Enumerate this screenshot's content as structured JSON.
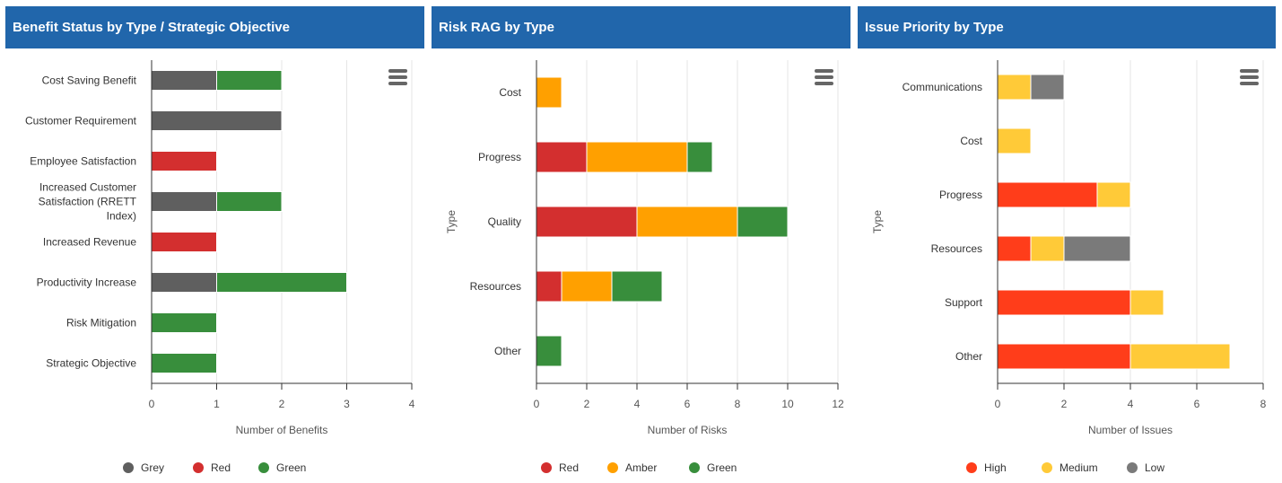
{
  "panels": [
    {
      "title": "Benefit Status by Type / Strategic Objective"
    },
    {
      "title": "Risk RAG by Type"
    },
    {
      "title": "Issue Priority by Type"
    }
  ],
  "colors": {
    "grey": "#5f5f5f",
    "red": "#d32f2f",
    "amber": "#ffa000",
    "green": "#388e3c",
    "high": "#ff3d1a",
    "medium": "#ffca38",
    "low": "#7a7a7a",
    "header_bg": "#2166ab",
    "menu_icon": "#666666"
  },
  "icons": {
    "menu": "hamburger-menu-icon",
    "legend_marker": "circle"
  },
  "chart_data": [
    {
      "type": "bar",
      "orientation": "horizontal",
      "stacked": true,
      "title": "Benefit Status by Type / Strategic Objective",
      "xlabel": "Number of Benefits",
      "ylabel": "",
      "xlim": [
        0,
        4
      ],
      "xticks": [
        "0",
        "1",
        "2",
        "3",
        "4"
      ],
      "grid": true,
      "legend_position": "bottom",
      "categories": [
        "Cost Saving Benefit",
        "Customer Requirement",
        "Employee Satisfaction",
        "Increased Customer Satisfaction (RRETT Index)",
        "Increased Revenue",
        "Productivity Increase",
        "Risk Mitigation",
        "Strategic Objective"
      ],
      "series": [
        {
          "name": "Grey",
          "color": "#5f5f5f",
          "values": [
            1,
            2,
            0,
            1,
            0,
            1,
            0,
            0
          ]
        },
        {
          "name": "Red",
          "color": "#d32f2f",
          "values": [
            0,
            0,
            1,
            0,
            1,
            0,
            0,
            0
          ]
        },
        {
          "name": "Green",
          "color": "#388e3c",
          "values": [
            1,
            0,
            0,
            1,
            0,
            2,
            1,
            1
          ]
        }
      ]
    },
    {
      "type": "bar",
      "orientation": "horizontal",
      "stacked": true,
      "title": "Risk RAG by Type",
      "xlabel": "Number of Risks",
      "ylabel": "Type",
      "xlim": [
        0,
        12
      ],
      "xticks": [
        "0",
        "2",
        "4",
        "6",
        "8",
        "10",
        "12"
      ],
      "grid": true,
      "legend_position": "bottom",
      "categories": [
        "Cost",
        "Progress",
        "Quality",
        "Resources",
        "Other"
      ],
      "series": [
        {
          "name": "Red",
          "color": "#d32f2f",
          "values": [
            0,
            2,
            4,
            1,
            0
          ]
        },
        {
          "name": "Amber",
          "color": "#ffa000",
          "values": [
            1,
            4,
            4,
            2,
            0
          ]
        },
        {
          "name": "Green",
          "color": "#388e3c",
          "values": [
            0,
            1,
            2,
            2,
            1
          ]
        }
      ]
    },
    {
      "type": "bar",
      "orientation": "horizontal",
      "stacked": true,
      "title": "Issue Priority by Type",
      "xlabel": "Number of Issues",
      "ylabel": "Type",
      "xlim": [
        0,
        8
      ],
      "xticks": [
        "0",
        "2",
        "4",
        "6",
        "8"
      ],
      "grid": true,
      "legend_position": "bottom",
      "categories": [
        "Communications",
        "Cost",
        "Progress",
        "Resources",
        "Support",
        "Other"
      ],
      "series": [
        {
          "name": "High",
          "color": "#ff3d1a",
          "values": [
            0,
            0,
            3,
            1,
            4,
            4
          ]
        },
        {
          "name": "Medium",
          "color": "#ffca38",
          "values": [
            1,
            1,
            1,
            1,
            1,
            3
          ]
        },
        {
          "name": "Low",
          "color": "#7a7a7a",
          "values": [
            1,
            0,
            0,
            2,
            0,
            0
          ]
        }
      ]
    }
  ]
}
